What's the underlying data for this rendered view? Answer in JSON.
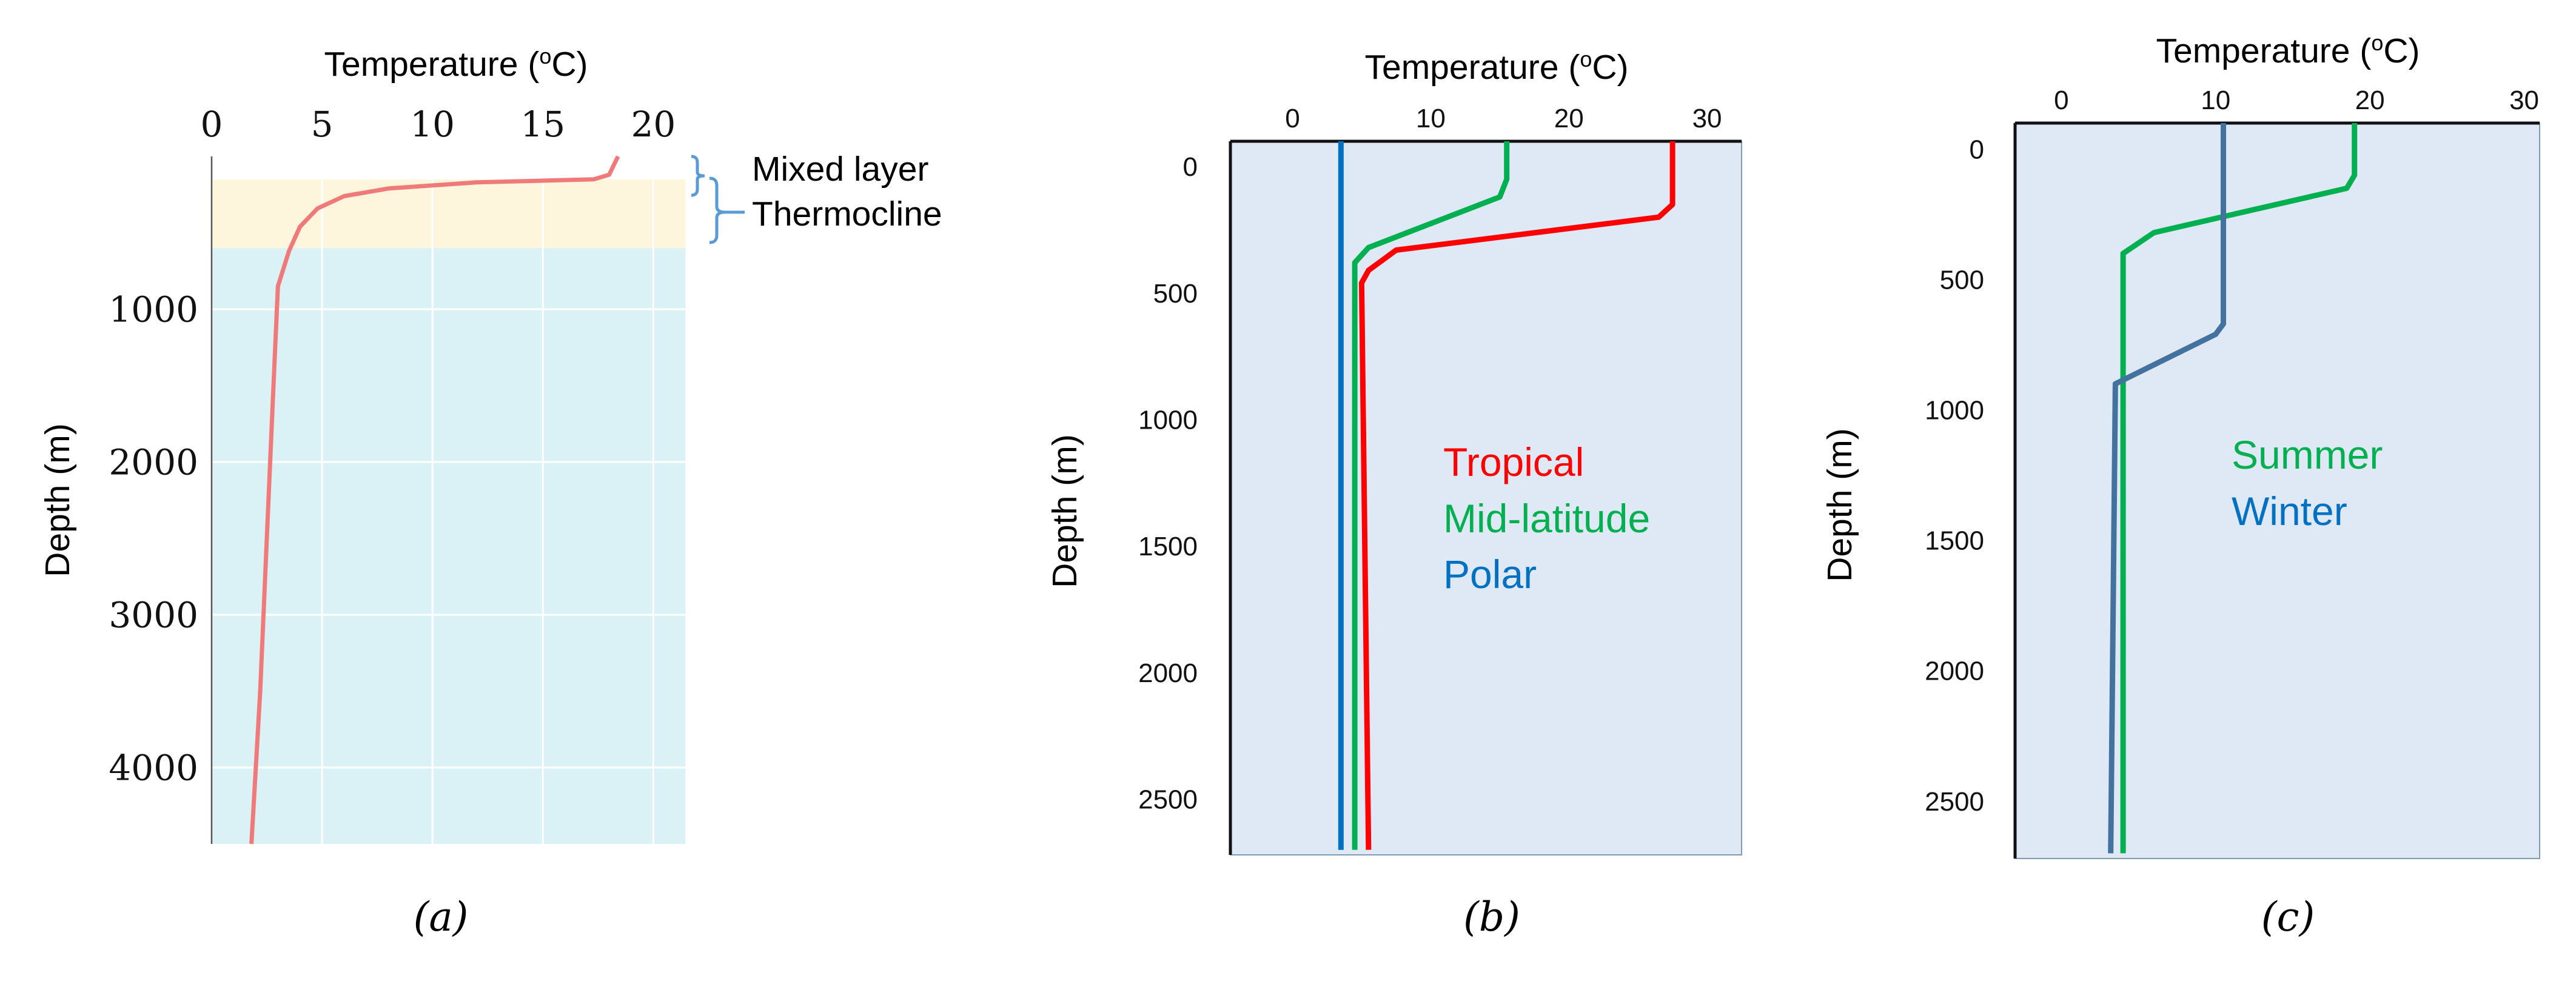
{
  "panels": [
    {
      "caption_letter": "a"
    },
    {
      "caption_letter": "b"
    },
    {
      "caption_letter": "c"
    }
  ],
  "chart_data": [
    {
      "type": "line",
      "xlabel": "Temperature (°C)",
      "ylabel": "Depth (m)",
      "xlim": [
        0,
        21.5
      ],
      "ylim": [
        0,
        4500
      ],
      "y_inverted": true,
      "x_axis_position": "top",
      "x_ticks": [
        0,
        5,
        10,
        15,
        20
      ],
      "x_tick_labels": [
        "0",
        "5",
        "10",
        "15",
        "20"
      ],
      "y_ticks": [
        1000,
        2000,
        3000,
        4000
      ],
      "y_tick_labels": [
        "1000",
        "2000",
        "3000",
        "4000"
      ],
      "grid": true,
      "layers": [
        {
          "label": "Mixed layer",
          "depth": [
            0,
            150
          ],
          "color": ""
        },
        {
          "label": "Thermocline",
          "depth": [
            150,
            600
          ],
          "color": "#fdf5dc"
        },
        {
          "label": "",
          "depth": [
            600,
            4500
          ],
          "color": "#daf1f6"
        }
      ],
      "series": [
        {
          "color": "#f07a7a",
          "points": [
            [
              18.4,
              0
            ],
            [
              18.2,
              60
            ],
            [
              18.0,
              120
            ],
            [
              17.3,
              150
            ],
            [
              12,
              170
            ],
            [
              8,
              210
            ],
            [
              6,
              260
            ],
            [
              4.8,
              340
            ],
            [
              4.0,
              460
            ],
            [
              3.5,
              620
            ],
            [
              3.0,
              850
            ],
            [
              2.8,
              1500
            ],
            [
              2.5,
              2500
            ],
            [
              2.2,
              3500
            ],
            [
              1.8,
              4500
            ]
          ]
        }
      ]
    },
    {
      "type": "line",
      "xlabel": "Temperature (°C)",
      "ylabel": "Depth (m)",
      "xlim": [
        -4.5,
        32.5
      ],
      "ylim": [
        -100,
        2720
      ],
      "y_inverted": true,
      "x_axis_position": "top",
      "x_ticks": [
        0,
        10,
        20,
        30
      ],
      "x_tick_labels": [
        "0",
        "10",
        "20",
        "30"
      ],
      "y_ticks": [
        0,
        500,
        1000,
        1500,
        2000,
        2500
      ],
      "y_tick_labels": [
        "0",
        "500",
        "1000",
        "1500",
        "2000",
        "2500"
      ],
      "grid": false,
      "background": "#dfe9f5",
      "legend": "inline-center",
      "series": [
        {
          "name": "Tropical",
          "color": "#ff0000",
          "points": [
            [
              27.5,
              -100
            ],
            [
              27.5,
              150
            ],
            [
              26.5,
              200
            ],
            [
              7.5,
              330
            ],
            [
              5.5,
              410
            ],
            [
              5,
              460
            ],
            [
              5.5,
              2700
            ]
          ]
        },
        {
          "name": "Mid-latitude",
          "color": "#00b050",
          "points": [
            [
              15.5,
              -100
            ],
            [
              15.5,
              50
            ],
            [
              15.0,
              120
            ],
            [
              5.5,
              320
            ],
            [
              4.5,
              380
            ],
            [
              4.5,
              2700
            ]
          ]
        },
        {
          "name": "Polar",
          "color": "#0070c0",
          "points": [
            [
              3.5,
              -100
            ],
            [
              3.5,
              2700
            ]
          ]
        }
      ]
    },
    {
      "type": "line",
      "xlabel": "Temperature (°C)",
      "ylabel": "Depth (m)",
      "xlim": [
        -3,
        31
      ],
      "ylim": [
        -100,
        2720
      ],
      "y_inverted": true,
      "x_axis_position": "top",
      "x_ticks": [
        0,
        10,
        20,
        30
      ],
      "x_tick_labels": [
        "0",
        "10",
        "20",
        "30"
      ],
      "y_ticks": [
        0,
        500,
        1000,
        1500,
        2000,
        2500
      ],
      "y_tick_labels": [
        "0",
        "500",
        "1000",
        "1500",
        "2000",
        "2500"
      ],
      "grid": false,
      "background": "#dfe9f5",
      "legend": "inline-center",
      "series": [
        {
          "name": "Summer",
          "color": "#00b050",
          "points": [
            [
              19,
              -100
            ],
            [
              19,
              100
            ],
            [
              18.5,
              150
            ],
            [
              6,
              320
            ],
            [
              4,
              400
            ],
            [
              4,
              2700
            ]
          ]
        },
        {
          "name": "Winter",
          "color": "#44729e",
          "points": [
            [
              10.5,
              -100
            ],
            [
              10.5,
              670
            ],
            [
              10.0,
              710
            ],
            [
              3.5,
              900
            ],
            [
              3.2,
              2700
            ]
          ]
        }
      ]
    }
  ]
}
